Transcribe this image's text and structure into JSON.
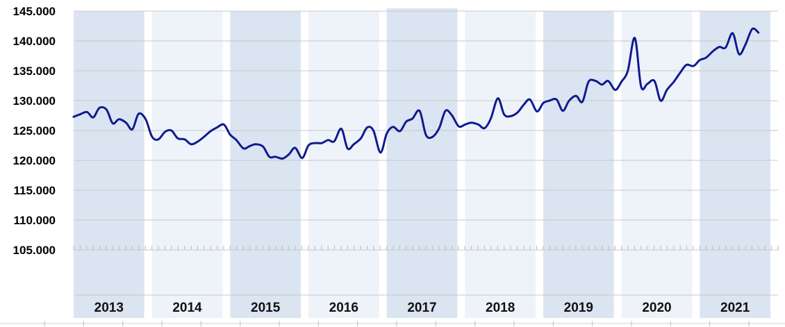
{
  "chart_data": {
    "type": "line",
    "title": "",
    "xlabel": "",
    "ylabel": "",
    "ylim": [
      105000,
      145000
    ],
    "xlim": [
      2013,
      2022
    ],
    "y_ticks": [
      "105.000",
      "110.000",
      "115.000",
      "120.000",
      "125.000",
      "130.000",
      "135.000",
      "140.000",
      "145.000"
    ],
    "y_tick_values": [
      105000,
      110000,
      115000,
      120000,
      125000,
      130000,
      135000,
      140000,
      145000
    ],
    "categories": [
      "2013",
      "2014",
      "2015",
      "2016",
      "2017",
      "2018",
      "2019",
      "2020",
      "2021"
    ],
    "grid": true,
    "legend": "none",
    "colors": {
      "line": "#0f1a8f",
      "band_dark": "#dbe5f1",
      "band_light": "#eef2f9",
      "grid": "#c8c8c8"
    },
    "series": [
      {
        "points": [
          [
            2013.0,
            127300
          ],
          [
            2013.08,
            127700
          ],
          [
            2013.17,
            128100
          ],
          [
            2013.25,
            127200
          ],
          [
            2013.33,
            128800
          ],
          [
            2013.42,
            128500
          ],
          [
            2013.5,
            126200
          ],
          [
            2013.58,
            126900
          ],
          [
            2013.67,
            126300
          ],
          [
            2013.75,
            125200
          ],
          [
            2013.83,
            127800
          ],
          [
            2013.92,
            126900
          ],
          [
            2014.0,
            124000
          ],
          [
            2014.08,
            123500
          ],
          [
            2014.17,
            124800
          ],
          [
            2014.25,
            125000
          ],
          [
            2014.33,
            123700
          ],
          [
            2014.42,
            123500
          ],
          [
            2014.5,
            122700
          ],
          [
            2014.58,
            123100
          ],
          [
            2014.67,
            124000
          ],
          [
            2014.75,
            124900
          ],
          [
            2014.83,
            125500
          ],
          [
            2014.92,
            126000
          ],
          [
            2015.0,
            124300
          ],
          [
            2015.08,
            123400
          ],
          [
            2015.17,
            122000
          ],
          [
            2015.25,
            122400
          ],
          [
            2015.33,
            122700
          ],
          [
            2015.42,
            122300
          ],
          [
            2015.5,
            120600
          ],
          [
            2015.58,
            120600
          ],
          [
            2015.67,
            120300
          ],
          [
            2015.75,
            121000
          ],
          [
            2015.83,
            122100
          ],
          [
            2015.92,
            120400
          ],
          [
            2016.0,
            122500
          ],
          [
            2016.08,
            122900
          ],
          [
            2016.17,
            122900
          ],
          [
            2016.25,
            123400
          ],
          [
            2016.33,
            123200
          ],
          [
            2016.42,
            125300
          ],
          [
            2016.5,
            122000
          ],
          [
            2016.58,
            122700
          ],
          [
            2016.67,
            123700
          ],
          [
            2016.75,
            125500
          ],
          [
            2016.83,
            125000
          ],
          [
            2016.92,
            121300
          ],
          [
            2017.0,
            124500
          ],
          [
            2017.08,
            125600
          ],
          [
            2017.17,
            124900
          ],
          [
            2017.25,
            126500
          ],
          [
            2017.33,
            127000
          ],
          [
            2017.42,
            128300
          ],
          [
            2017.5,
            124300
          ],
          [
            2017.58,
            123900
          ],
          [
            2017.67,
            125400
          ],
          [
            2017.75,
            128300
          ],
          [
            2017.83,
            127600
          ],
          [
            2017.92,
            125700
          ],
          [
            2018.0,
            126000
          ],
          [
            2018.08,
            126300
          ],
          [
            2018.17,
            126000
          ],
          [
            2018.25,
            125400
          ],
          [
            2018.33,
            127000
          ],
          [
            2018.42,
            130400
          ],
          [
            2018.5,
            127700
          ],
          [
            2018.58,
            127400
          ],
          [
            2018.67,
            128000
          ],
          [
            2018.75,
            129300
          ],
          [
            2018.83,
            130200
          ],
          [
            2018.92,
            128200
          ],
          [
            2019.0,
            129600
          ],
          [
            2019.08,
            130000
          ],
          [
            2019.17,
            130200
          ],
          [
            2019.25,
            128300
          ],
          [
            2019.33,
            130000
          ],
          [
            2019.42,
            130800
          ],
          [
            2019.5,
            129800
          ],
          [
            2019.58,
            133200
          ],
          [
            2019.67,
            133300
          ],
          [
            2019.75,
            132700
          ],
          [
            2019.83,
            133300
          ],
          [
            2019.92,
            131800
          ],
          [
            2020.0,
            133200
          ],
          [
            2020.08,
            135000
          ],
          [
            2020.17,
            140500
          ],
          [
            2020.25,
            132400
          ],
          [
            2020.33,
            132800
          ],
          [
            2020.42,
            133300
          ],
          [
            2020.5,
            130000
          ],
          [
            2020.58,
            131800
          ],
          [
            2020.67,
            133200
          ],
          [
            2020.75,
            134700
          ],
          [
            2020.83,
            136000
          ],
          [
            2020.92,
            135800
          ],
          [
            2021.0,
            136800
          ],
          [
            2021.08,
            137200
          ],
          [
            2021.17,
            138300
          ],
          [
            2021.25,
            139000
          ],
          [
            2021.33,
            138900
          ],
          [
            2021.42,
            141300
          ],
          [
            2021.5,
            137800
          ],
          [
            2021.58,
            139300
          ],
          [
            2021.67,
            142000
          ],
          [
            2021.75,
            141400
          ]
        ]
      }
    ]
  }
}
